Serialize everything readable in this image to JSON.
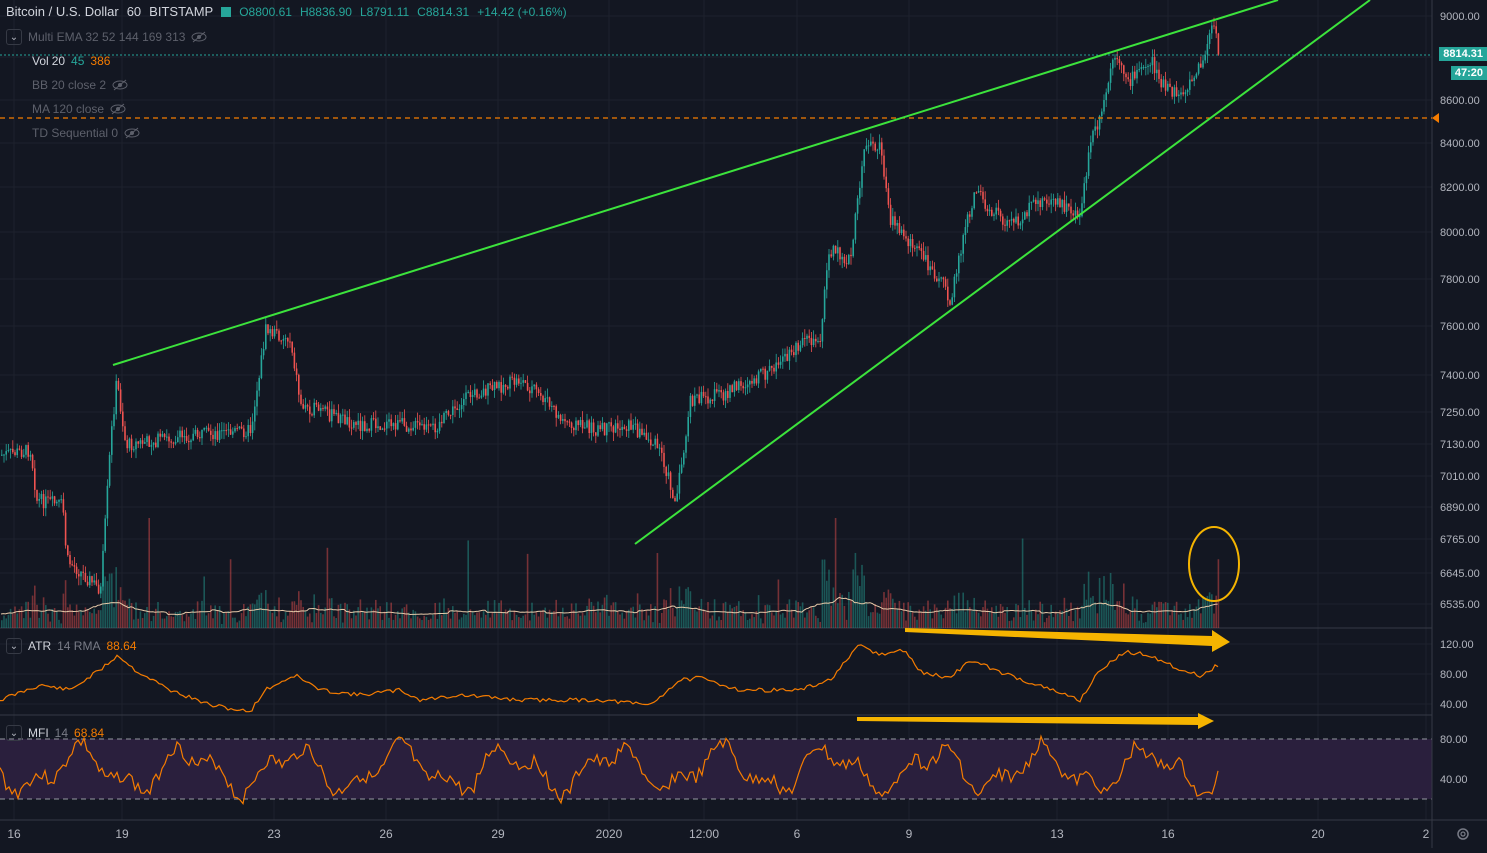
{
  "header": {
    "symbol": "Bitcoin / U.S. Dollar",
    "interval": "60",
    "exchange": "BITSTAMP",
    "open": "O8800.61",
    "high": "H8836.90",
    "low": "L8791.11",
    "close": "C8814.31",
    "change": "+14.42 (+0.16%)"
  },
  "indicators": [
    {
      "name": "Multi EMA 32 52 144 169 313",
      "hidden": true
    },
    {
      "name": "Vol",
      "params": "20",
      "v1": "45",
      "v2": "386",
      "hidden": false
    },
    {
      "name": "BB 20 close 2",
      "hidden": true
    },
    {
      "name": "MA 120 close",
      "hidden": true
    },
    {
      "name": "TD Sequential 0",
      "hidden": true
    }
  ],
  "price_axis": {
    "ticks": [
      "9000.00",
      "8800.00",
      "8600.00",
      "8400.00",
      "8200.00",
      "8000.00",
      "7800.00",
      "7600.00",
      "7400.00",
      "7250.00",
      "7130.00",
      "7010.00",
      "6890.00",
      "6765.00",
      "6645.00",
      "6535.00"
    ],
    "last_price": "8814.31",
    "countdown": "47:20"
  },
  "atr_pane": {
    "name": "ATR",
    "params": "14 RMA",
    "value": "88.64",
    "ticks": [
      "120.00",
      "80.00",
      "40.00"
    ]
  },
  "mfi_pane": {
    "name": "MFI",
    "params": "14",
    "value": "68.84",
    "ticks": [
      "80.00",
      "40.00"
    ]
  },
  "time_axis": {
    "labels": [
      "16",
      "19",
      "23",
      "26",
      "29",
      "2020",
      "12:00",
      "6",
      "9",
      "13",
      "16",
      "20",
      "2"
    ]
  },
  "colors": {
    "background": "#131722",
    "up": "#26a69a",
    "down": "#ef5350",
    "trendline": "#3ce33c",
    "annotation": "#f5b400",
    "indicator": "#f57c00",
    "mfi_band": "#2a1f3d"
  },
  "icons": [
    "eye-off-icon",
    "collapse-icon",
    "settings-icon",
    "flag-icon"
  ]
}
